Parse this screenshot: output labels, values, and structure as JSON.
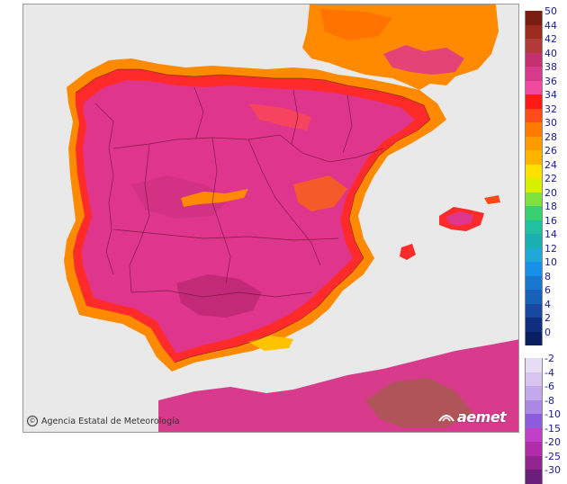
{
  "map": {
    "credit": "Agencia Estatal de Meteorología",
    "brand": "aemet",
    "copyright_icon": "copyright-icon",
    "colors": {
      "sea": "#e9e9e9",
      "land_hot": "#e0358c",
      "land_very_hot": "#c22a78",
      "coast": "#ff2b2b",
      "warm": "#ff8a00",
      "mild": "#ffc200"
    }
  },
  "legend": {
    "positive": [
      {
        "label": "50",
        "color": "#7a1e12"
      },
      {
        "label": "44",
        "color": "#9a2b1e"
      },
      {
        "label": "42",
        "color": "#b23a3a"
      },
      {
        "label": "40",
        "color": "#c4306e"
      },
      {
        "label": "38",
        "color": "#d63a8a"
      },
      {
        "label": "36",
        "color": "#f04aa0"
      },
      {
        "label": "34",
        "color": "#ff1a1a"
      },
      {
        "label": "32",
        "color": "#ff4a1a"
      },
      {
        "label": "30",
        "color": "#ff7a00"
      },
      {
        "label": "28",
        "color": "#ff9a00"
      },
      {
        "label": "26",
        "color": "#ffb400"
      },
      {
        "label": "24",
        "color": "#ffe000"
      },
      {
        "label": "22",
        "color": "#d8f000"
      },
      {
        "label": "20",
        "color": "#80e040"
      },
      {
        "label": "18",
        "color": "#38d070"
      },
      {
        "label": "16",
        "color": "#20c0a0"
      },
      {
        "label": "14",
        "color": "#18b0b0"
      },
      {
        "label": "12",
        "color": "#20a8d8"
      },
      {
        "label": "10",
        "color": "#1890e8"
      },
      {
        "label": "8",
        "color": "#1878d0"
      },
      {
        "label": "6",
        "color": "#1860b8"
      },
      {
        "label": "4",
        "color": "#1848a0"
      },
      {
        "label": "2",
        "color": "#102e80"
      },
      {
        "label": "0",
        "color": "#0a1f60"
      }
    ],
    "negative": [
      {
        "label": "-2",
        "color": "#e8dcf4"
      },
      {
        "label": "-4",
        "color": "#d8c4f0"
      },
      {
        "label": "-6",
        "color": "#c4a8ec"
      },
      {
        "label": "-8",
        "color": "#aa88e4"
      },
      {
        "label": "-10",
        "color": "#8c5cdc"
      },
      {
        "label": "-15",
        "color": "#c040c8"
      },
      {
        "label": "-20",
        "color": "#b02ca8"
      },
      {
        "label": "-25",
        "color": "#902590"
      },
      {
        "label": "-30",
        "color": "#6a1f7a"
      }
    ]
  }
}
